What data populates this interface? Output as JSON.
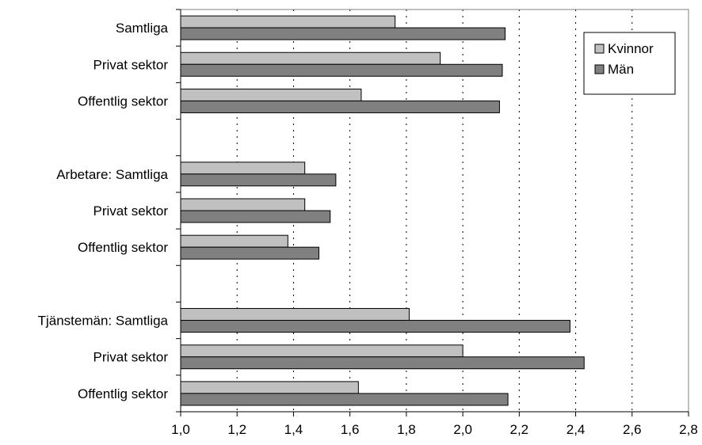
{
  "chart_data": {
    "type": "bar",
    "orientation": "horizontal",
    "title": "",
    "xlabel": "",
    "ylabel": "",
    "xlim": [
      1.0,
      2.8
    ],
    "xticks": [
      "1,0",
      "1,2",
      "1,4",
      "1,6",
      "1,8",
      "2,0",
      "2,2",
      "2,4",
      "2,6",
      "2,8"
    ],
    "grid": "vertical dotted",
    "legend_position": "top-right",
    "categories": [
      "Samtliga",
      "Privat sektor",
      "Offentlig sektor",
      "",
      "Arbetare: Samtliga",
      "Privat sektor",
      "Offentlig sektor",
      "",
      "Tjänstemän: Samtliga",
      "Privat sektor",
      "Offentlig sektor"
    ],
    "series": [
      {
        "name": "Kvinnor",
        "color": "#c0c0c0",
        "values": [
          1.76,
          1.92,
          1.64,
          null,
          1.44,
          1.44,
          1.38,
          null,
          1.81,
          2.0,
          1.63
        ]
      },
      {
        "name": "Män",
        "color": "#808080",
        "values": [
          2.15,
          2.14,
          2.13,
          null,
          1.55,
          1.53,
          1.49,
          null,
          2.38,
          2.43,
          2.16
        ]
      }
    ]
  }
}
